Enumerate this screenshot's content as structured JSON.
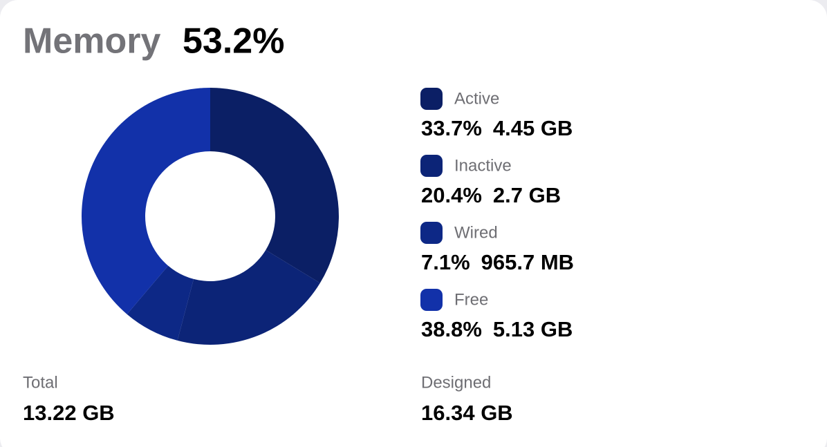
{
  "header": {
    "label": "Memory",
    "value": "53.2%"
  },
  "chart_data": {
    "type": "donut",
    "categories": [
      "Active",
      "Inactive",
      "Wired",
      "Free"
    ],
    "values": [
      33.7,
      20.4,
      7.1,
      38.8
    ],
    "value_labels": [
      "33.7%",
      "20.4%",
      "7.1%",
      "38.8%"
    ],
    "sizes": [
      "4.45 GB",
      "2.7 GB",
      "965.7 MB",
      "5.13 GB"
    ],
    "colors": [
      "#0b1f65",
      "#0c2477",
      "#0d2886",
      "#1231a9"
    ]
  },
  "footer": {
    "total": {
      "label": "Total",
      "value": "13.22 GB"
    },
    "designed": {
      "label": "Designed",
      "value": "16.34 GB"
    }
  }
}
